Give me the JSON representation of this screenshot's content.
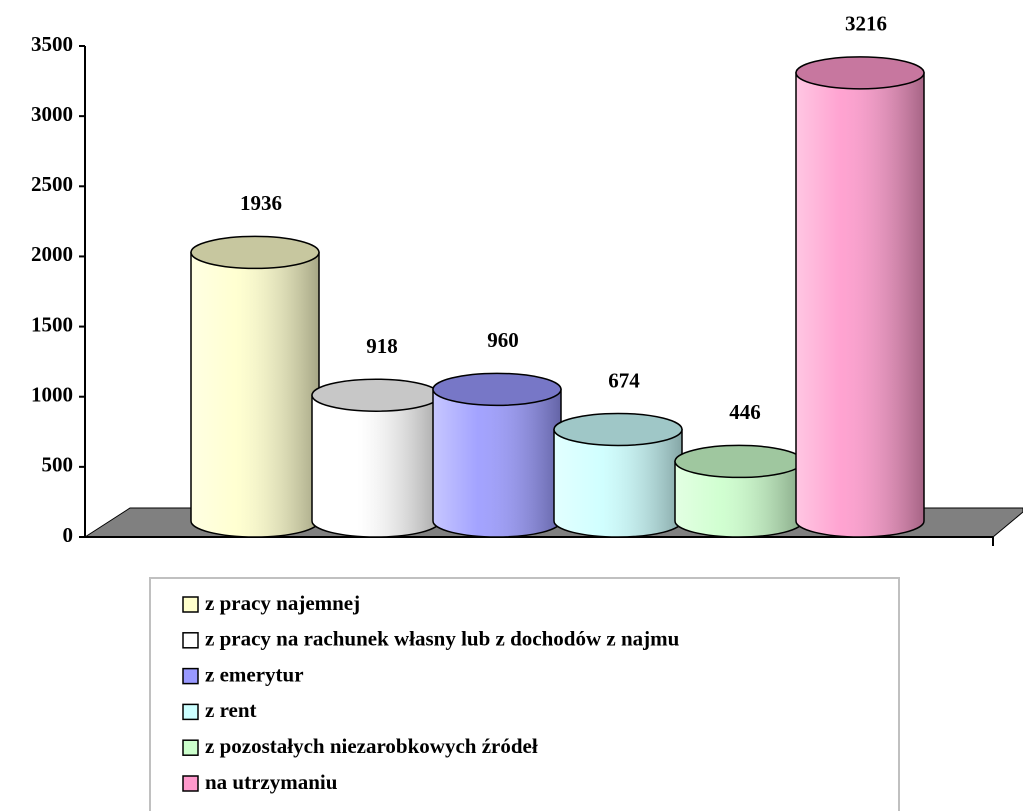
{
  "chart_data": {
    "type": "bar",
    "series": [
      {
        "name": "z pracy najemnej",
        "color": "#FFFFCC",
        "values": [
          1936
        ]
      },
      {
        "name": "z pracy na rachunek własny lub z dochodów z najmu",
        "color": "#FFFFFF",
        "values": [
          918
        ]
      },
      {
        "name": "z emerytur",
        "color": "#9999FF",
        "values": [
          960
        ]
      },
      {
        "name": "z rent",
        "color": "#CCFFFF",
        "values": [
          674
        ]
      },
      {
        "name": "z pozostałych niezarobkowych źródeł",
        "color": "#CCFFCC",
        "values": [
          446
        ]
      },
      {
        "name": "na utrzymaniu",
        "color": "#FF99CC",
        "values": [
          3216
        ]
      }
    ],
    "ylim": [
      0,
      3500
    ],
    "yticks": [
      0,
      500,
      1000,
      1500,
      2000,
      2500,
      3000,
      3500
    ]
  }
}
